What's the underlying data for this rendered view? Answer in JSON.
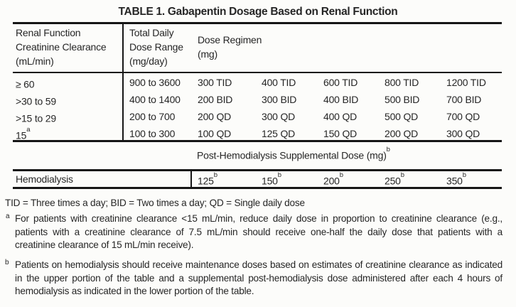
{
  "title": "TABLE 1. Gabapentin Dosage Based on Renal Function",
  "colors": {
    "background": "#fcfcfa",
    "text": "#262626",
    "rule": "#161616"
  },
  "main_table": {
    "headers": {
      "col1": {
        "line1": "Renal Function",
        "line2": "Creatinine Clearance",
        "line3": "(mL/min)"
      },
      "col2": {
        "line1": "Total Daily",
        "line2": "Dose Range",
        "line3": "(mg/day)"
      },
      "col3": {
        "line1": "Dose Regimen",
        "line2": "(mg)"
      }
    },
    "rows": [
      {
        "renal": {
          "text": "≥ 60",
          "sup": ""
        },
        "range": "900 to 3600",
        "doses": [
          "300 TID",
          "400 TID",
          "600 TID",
          "800 TID",
          "1200 TID"
        ]
      },
      {
        "renal": {
          "text": ">30 to 59",
          "sup": ""
        },
        "range": "400 to 1400",
        "doses": [
          "200 BID",
          "300 BID",
          "400 BID",
          "500 BID",
          "700 BID"
        ]
      },
      {
        "renal": {
          "text": ">15 to 29",
          "sup": ""
        },
        "range": "200 to 700",
        "doses": [
          "200 QD",
          "300 QD",
          "400 QD",
          "500 QD",
          "700 QD"
        ]
      },
      {
        "renal": {
          "text": "15",
          "sup": "a"
        },
        "range": "100 to 300",
        "doses": [
          "100 QD",
          "125 QD",
          "150 QD",
          "200 QD",
          "300 QD"
        ]
      }
    ]
  },
  "hemo_section": {
    "label": {
      "text": "Post-Hemodialysis Supplemental Dose (mg)",
      "sup": "b"
    },
    "row_label": "Hemodialysis",
    "values": [
      {
        "text": "125",
        "sup": "b"
      },
      {
        "text": "150",
        "sup": "b"
      },
      {
        "text": "200",
        "sup": "b"
      },
      {
        "text": "250",
        "sup": "b"
      },
      {
        "text": "350",
        "sup": "b"
      }
    ]
  },
  "footnotes": {
    "abbreviations": "TID = Three times a day; BID = Two times a day; QD = Single daily dose",
    "a": {
      "marker": "a",
      "text": "For patients with creatinine clearance <15 mL/min, reduce daily dose in proportion to creatinine clearance (e.g., patients with a creatinine clearance of 7.5 mL/min should receive one-half the daily dose that patients with a creatinine clearance of 15 mL/min receive)."
    },
    "b": {
      "marker": "b",
      "text": "Patients on hemodialysis should receive maintenance doses based on estimates of creatinine clearance as indicated in the upper portion of the table and a supplemental post-hemodialysis dose administered after each 4 hours of hemodialysis as indicated in the lower portion of the table."
    }
  }
}
